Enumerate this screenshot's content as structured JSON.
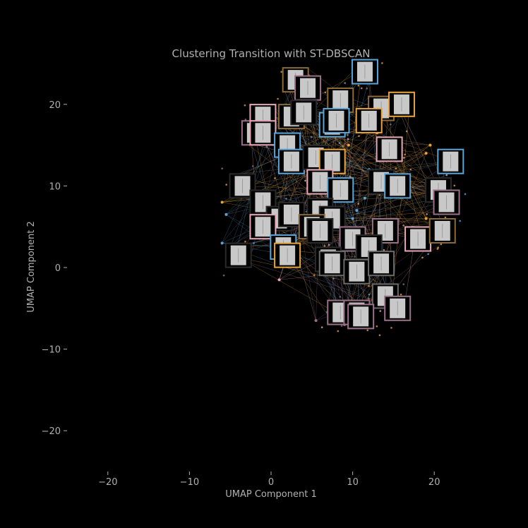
{
  "chart_data": {
    "type": "scatter",
    "title": "Clustering Transition with ST-DBSCAN",
    "xlabel": "UMAP Component 1",
    "ylabel": "UMAP Component 2",
    "xlim": [
      -25,
      25
    ],
    "ylim": [
      -25,
      25
    ],
    "xticks": [
      -20,
      -10,
      0,
      10,
      20
    ],
    "yticks": [
      -20,
      -10,
      0,
      10,
      20
    ],
    "xtick_labels": [
      "−20",
      "−10",
      "0",
      "10",
      "20"
    ],
    "ytick_labels": [
      "−20",
      "−10",
      "0",
      "10",
      "20"
    ],
    "grid": false,
    "background": "#000000",
    "colors": {
      "orange": "#e8a33a",
      "blue": "#5aa5d8",
      "pink": "#e8a8b8",
      "mauve": "#9a7088",
      "brown": "#8a6a3a",
      "gray": "#6a6a6a",
      "dark": "#2a2a2a",
      "thumbnail_fill": "#c8c8c8"
    },
    "thumbnails": [
      {
        "x": 3,
        "y": 23,
        "color": "brown"
      },
      {
        "x": 11.5,
        "y": 24,
        "color": "blue"
      },
      {
        "x": 4.5,
        "y": 22,
        "color": "mauve"
      },
      {
        "x": 8.5,
        "y": 20.5,
        "color": "brown"
      },
      {
        "x": 13.5,
        "y": 19.5,
        "color": "brown"
      },
      {
        "x": 16,
        "y": 20,
        "color": "orange"
      },
      {
        "x": -1,
        "y": 18.5,
        "color": "pink"
      },
      {
        "x": 2.5,
        "y": 18.5,
        "color": "brown"
      },
      {
        "x": 4,
        "y": 19,
        "color": "dark"
      },
      {
        "x": 7.5,
        "y": 17.5,
        "color": "blue"
      },
      {
        "x": 8,
        "y": 18,
        "color": "blue"
      },
      {
        "x": 12,
        "y": 18,
        "color": "orange"
      },
      {
        "x": -2,
        "y": 16.5,
        "color": "mauve"
      },
      {
        "x": -1,
        "y": 16.5,
        "color": "pink"
      },
      {
        "x": 2,
        "y": 15,
        "color": "blue"
      },
      {
        "x": 2.5,
        "y": 13,
        "color": "blue"
      },
      {
        "x": 5.5,
        "y": 13.5,
        "color": "dark"
      },
      {
        "x": 7.5,
        "y": 13,
        "color": "orange"
      },
      {
        "x": 14.5,
        "y": 14.5,
        "color": "pink"
      },
      {
        "x": 22,
        "y": 13,
        "color": "blue"
      },
      {
        "x": -3.5,
        "y": 10,
        "color": "dark"
      },
      {
        "x": 6,
        "y": 10.5,
        "color": "pink"
      },
      {
        "x": 8.5,
        "y": 9.5,
        "color": "blue"
      },
      {
        "x": 13.5,
        "y": 10.5,
        "color": "dark"
      },
      {
        "x": 15.5,
        "y": 10,
        "color": "blue"
      },
      {
        "x": 20.5,
        "y": 9.5,
        "color": "dark"
      },
      {
        "x": 21.5,
        "y": 8,
        "color": "mauve"
      },
      {
        "x": -1,
        "y": 8,
        "color": "dark"
      },
      {
        "x": 1,
        "y": 6,
        "color": "dark"
      },
      {
        "x": 2.5,
        "y": 6.5,
        "color": "dark"
      },
      {
        "x": 6,
        "y": 7,
        "color": "dark"
      },
      {
        "x": 7.5,
        "y": 6,
        "color": "dark"
      },
      {
        "x": -1,
        "y": 5,
        "color": "pink"
      },
      {
        "x": 5,
        "y": 5,
        "color": "brown"
      },
      {
        "x": 6,
        "y": 4.5,
        "color": "dark"
      },
      {
        "x": 14,
        "y": 4.5,
        "color": "mauve"
      },
      {
        "x": 18,
        "y": 3.5,
        "color": "pink"
      },
      {
        "x": 21,
        "y": 4.5,
        "color": "brown"
      },
      {
        "x": 10,
        "y": 3.5,
        "color": "mauve"
      },
      {
        "x": 12,
        "y": 2.5,
        "color": "dark"
      },
      {
        "x": -4,
        "y": 1.5,
        "color": "dark"
      },
      {
        "x": 1.5,
        "y": 2.5,
        "color": "blue"
      },
      {
        "x": 2,
        "y": 1.5,
        "color": "orange"
      },
      {
        "x": 7,
        "y": 1,
        "color": "dark"
      },
      {
        "x": 7.5,
        "y": 0.5,
        "color": "gray"
      },
      {
        "x": 10.5,
        "y": -0.5,
        "color": "gray"
      },
      {
        "x": 13.5,
        "y": 0.5,
        "color": "gray"
      },
      {
        "x": 14,
        "y": -3.5,
        "color": "gray"
      },
      {
        "x": 15.5,
        "y": -5,
        "color": "mauve"
      },
      {
        "x": 8.5,
        "y": -5.5,
        "color": "mauve"
      },
      {
        "x": 10.5,
        "y": -5.5,
        "color": "mauve"
      },
      {
        "x": 11,
        "y": -6,
        "color": "mauve"
      }
    ],
    "points": [
      {
        "x": -6,
        "y": 8,
        "color": "orange"
      },
      {
        "x": -6,
        "y": 3,
        "color": "blue"
      },
      {
        "x": -5.5,
        "y": 6.5,
        "color": "blue"
      },
      {
        "x": -5,
        "y": 2.5,
        "color": "blue"
      },
      {
        "x": 1,
        "y": -1.5,
        "color": "pink"
      },
      {
        "x": 5.5,
        "y": -6.5,
        "color": "mauve"
      },
      {
        "x": 9,
        "y": -7,
        "color": "mauve"
      },
      {
        "x": 19.5,
        "y": 15,
        "color": "orange"
      },
      {
        "x": 19,
        "y": 14,
        "color": "orange"
      },
      {
        "x": 19.5,
        "y": 9,
        "color": "orange"
      },
      {
        "x": 19,
        "y": 6,
        "color": "orange"
      },
      {
        "x": 20,
        "y": 5.5,
        "color": "orange"
      },
      {
        "x": 10.5,
        "y": 7,
        "color": "blue"
      },
      {
        "x": 11.5,
        "y": 8.5,
        "color": "blue"
      },
      {
        "x": 12,
        "y": 12,
        "color": "blue"
      },
      {
        "x": 10,
        "y": 6,
        "color": "blue"
      },
      {
        "x": 6.5,
        "y": 17,
        "color": "orange"
      },
      {
        "x": 13,
        "y": 16.5,
        "color": "orange"
      },
      {
        "x": 9.5,
        "y": 15,
        "color": "orange"
      }
    ]
  }
}
